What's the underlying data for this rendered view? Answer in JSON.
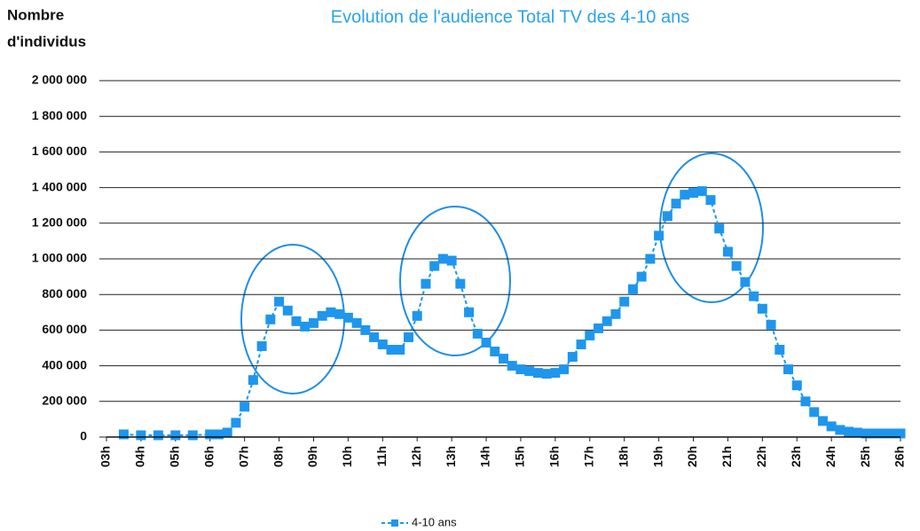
{
  "chart_data": {
    "type": "line",
    "title": "Evolution de l'audience Total TV des 4-10 ans",
    "ylabel": [
      "Nombre",
      "d'individus"
    ],
    "x": [
      3.5,
      4,
      4.5,
      5,
      5.5,
      6,
      6.25,
      6.5,
      6.75,
      7,
      7.25,
      7.5,
      7.75,
      8,
      8.25,
      8.5,
      8.75,
      9,
      9.25,
      9.5,
      9.75,
      10,
      10.25,
      10.5,
      10.75,
      11,
      11.25,
      11.5,
      11.75,
      12,
      12.25,
      12.5,
      12.75,
      13,
      13.25,
      13.5,
      13.75,
      14,
      14.25,
      14.5,
      14.75,
      15,
      15.25,
      15.5,
      15.75,
      16,
      16.25,
      16.5,
      16.75,
      17,
      17.25,
      17.5,
      17.75,
      18,
      18.25,
      18.5,
      18.75,
      19,
      19.25,
      19.5,
      19.75,
      20,
      20.25,
      20.5,
      20.75,
      21,
      21.25,
      21.5,
      21.75,
      22,
      22.25,
      22.5,
      22.75,
      23,
      23.25,
      23.5,
      23.75,
      24,
      24.25,
      24.5,
      24.75,
      25,
      25.25,
      25.5,
      25.75,
      26
    ],
    "series": [
      {
        "name": "4-10 ans",
        "color": "#1e96ee",
        "values": [
          15000,
          10000,
          10000,
          10000,
          10000,
          15000,
          15000,
          25000,
          80000,
          170000,
          320000,
          510000,
          660000,
          760000,
          710000,
          650000,
          620000,
          640000,
          680000,
          700000,
          690000,
          670000,
          640000,
          600000,
          560000,
          520000,
          490000,
          490000,
          560000,
          680000,
          860000,
          960000,
          1000000,
          990000,
          860000,
          700000,
          580000,
          530000,
          480000,
          440000,
          400000,
          380000,
          370000,
          360000,
          355000,
          360000,
          380000,
          450000,
          520000,
          570000,
          610000,
          650000,
          690000,
          760000,
          830000,
          900000,
          1000000,
          1130000,
          1240000,
          1310000,
          1360000,
          1370000,
          1380000,
          1330000,
          1170000,
          1040000,
          960000,
          870000,
          790000,
          720000,
          630000,
          490000,
          380000,
          290000,
          200000,
          140000,
          90000,
          60000,
          40000,
          30000,
          25000,
          20000,
          20000,
          20000,
          20000,
          20000
        ]
      }
    ],
    "xlim": [
      3,
      26
    ],
    "xticks": [
      {
        "value": 3,
        "label": "03h"
      },
      {
        "value": 4,
        "label": "04h"
      },
      {
        "value": 5,
        "label": "05h"
      },
      {
        "value": 6,
        "label": "06h"
      },
      {
        "value": 7,
        "label": "07h"
      },
      {
        "value": 8,
        "label": "08h"
      },
      {
        "value": 9,
        "label": "09h"
      },
      {
        "value": 10,
        "label": "10h"
      },
      {
        "value": 11,
        "label": "11h"
      },
      {
        "value": 12,
        "label": "12h"
      },
      {
        "value": 13,
        "label": "13h"
      },
      {
        "value": 14,
        "label": "14h"
      },
      {
        "value": 15,
        "label": "15h"
      },
      {
        "value": 16,
        "label": "16h"
      },
      {
        "value": 17,
        "label": "17h"
      },
      {
        "value": 18,
        "label": "18h"
      },
      {
        "value": 19,
        "label": "19h"
      },
      {
        "value": 20,
        "label": "20h"
      },
      {
        "value": 21,
        "label": "21h"
      },
      {
        "value": 22,
        "label": "22h"
      },
      {
        "value": 23,
        "label": "23h"
      },
      {
        "value": 24,
        "label": "24h"
      },
      {
        "value": 25,
        "label": "25h"
      },
      {
        "value": 26,
        "label": "26h"
      }
    ],
    "ylim": [
      0,
      2000000
    ],
    "yticks": [
      0,
      {
        "value": 200000,
        "label": "200 000"
      },
      {
        "value": 400000,
        "label": "400 000"
      },
      {
        "value": 600000,
        "label": "600 000"
      },
      {
        "value": 800000,
        "label": "800 000"
      },
      {
        "value": 1000000,
        "label": "1 000 000"
      },
      {
        "value": 1200000,
        "label": "1 200 000"
      },
      {
        "value": 1400000,
        "label": "1 400 000"
      },
      {
        "value": 1600000,
        "label": "1 600 000"
      },
      {
        "value": 1800000,
        "label": "1 800 000"
      },
      {
        "value": 2000000,
        "label": "2 000 000"
      }
    ],
    "grid": true,
    "legend": "bottom"
  }
}
